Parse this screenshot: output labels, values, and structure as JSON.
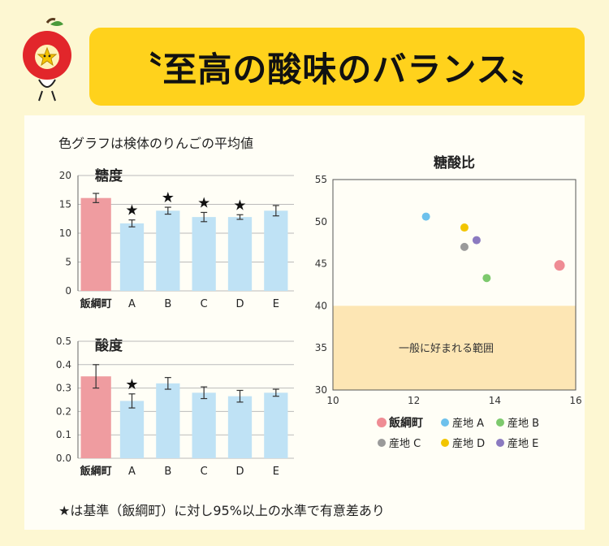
{
  "banner": {
    "title": "〝至高の酸味のバランス〟"
  },
  "note": "色グラフは検体のりんごの平均値",
  "footer": "★は基準（飯綱町）に対し95%以上の水準で有意差あり",
  "colors": {
    "base": "#ef9ca0",
    "others": "#bfe2f5",
    "banner": "#ffd21c",
    "region": "#fde6b4"
  },
  "chart_data": [
    {
      "type": "bar",
      "title": "糖度",
      "categories": [
        "飯綱町",
        "A",
        "B",
        "C",
        "D",
        "E"
      ],
      "values": [
        16.1,
        11.7,
        13.9,
        12.8,
        12.8,
        13.9
      ],
      "errors": [
        0.8,
        0.6,
        0.6,
        0.8,
        0.4,
        0.9
      ],
      "significant": [
        false,
        true,
        true,
        true,
        true,
        false
      ],
      "ylim": [
        0,
        20
      ],
      "yticks": [
        "0",
        "5",
        "10",
        "15",
        "20"
      ],
      "tickvals": [
        0,
        5,
        10,
        15,
        20
      ]
    },
    {
      "type": "bar",
      "title": "酸度",
      "categories": [
        "飯綱町",
        "A",
        "B",
        "C",
        "D",
        "E"
      ],
      "values": [
        0.35,
        0.245,
        0.32,
        0.28,
        0.265,
        0.28
      ],
      "errors": [
        0.05,
        0.03,
        0.025,
        0.025,
        0.025,
        0.015
      ],
      "significant": [
        false,
        true,
        false,
        false,
        false,
        false
      ],
      "ylim": [
        0,
        0.5
      ],
      "yticks": [
        "0.0",
        "0.1",
        "0.2",
        "0.3",
        "0.4",
        "0.5"
      ],
      "tickvals": [
        0,
        0.1,
        0.2,
        0.3,
        0.4,
        0.5
      ]
    },
    {
      "type": "scatter",
      "title": "糖酸比",
      "xlim": [
        10,
        16
      ],
      "ylim": [
        30,
        55
      ],
      "xticks": [
        "10",
        "12",
        "14",
        "16"
      ],
      "xtickvals": [
        10,
        12,
        14,
        16
      ],
      "yticks": [
        "30",
        "35",
        "40",
        "45",
        "50",
        "55"
      ],
      "ytickvals": [
        30,
        35,
        40,
        45,
        50,
        55
      ],
      "region": {
        "label": "一般に好まれる範囲",
        "ymin": 30,
        "ymax": 40
      },
      "series": [
        {
          "name": "飯綱町",
          "x": 15.6,
          "y": 44.8,
          "color": "#ef8c94"
        },
        {
          "name": "産地 A",
          "x": 12.3,
          "y": 50.6,
          "color": "#6ec1ec"
        },
        {
          "name": "産地 B",
          "x": 13.8,
          "y": 43.3,
          "color": "#7dc96d"
        },
        {
          "name": "産地 C",
          "x": 13.25,
          "y": 47.0,
          "color": "#9a9a9a"
        },
        {
          "name": "産地 D",
          "x": 13.25,
          "y": 49.3,
          "color": "#f2c500"
        },
        {
          "name": "産地 E",
          "x": 13.55,
          "y": 47.8,
          "color": "#8b7ac0"
        }
      ]
    }
  ]
}
